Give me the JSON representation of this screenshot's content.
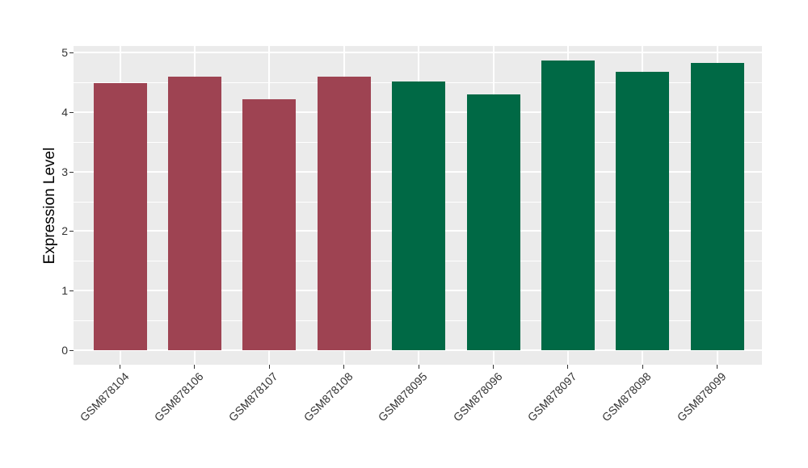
{
  "chart_data": {
    "type": "bar",
    "title": "",
    "xlabel": "",
    "ylabel": "Expression Level",
    "categories": [
      "GSM878104",
      "GSM878106",
      "GSM878107",
      "GSM878108",
      "GSM878095",
      "GSM878096",
      "GSM878097",
      "GSM878098",
      "GSM878099"
    ],
    "values": [
      4.48,
      4.59,
      4.22,
      4.6,
      4.51,
      4.3,
      4.86,
      4.68,
      4.82
    ],
    "bar_colors": [
      "#9E4352",
      "#9E4352",
      "#9E4352",
      "#9E4352",
      "#006945",
      "#006945",
      "#006945",
      "#006945",
      "#006945"
    ],
    "group_colors": {
      "left_group": "#9E4352",
      "right_group": "#006945"
    },
    "ylim": [
      0,
      5
    ],
    "y_ticks": [
      0,
      1,
      2,
      3,
      4,
      5
    ],
    "y_minor_ticks": [
      0.5,
      1.5,
      2.5,
      3.5,
      4.5
    ],
    "grid": true,
    "legend_position": "none",
    "style": {
      "panel_bg": "#EBEBEB",
      "grid_color": "#FFFFFF",
      "tick_color": "#333333",
      "tick_label_color": "#333333",
      "axis_title_color": "#000000"
    }
  }
}
